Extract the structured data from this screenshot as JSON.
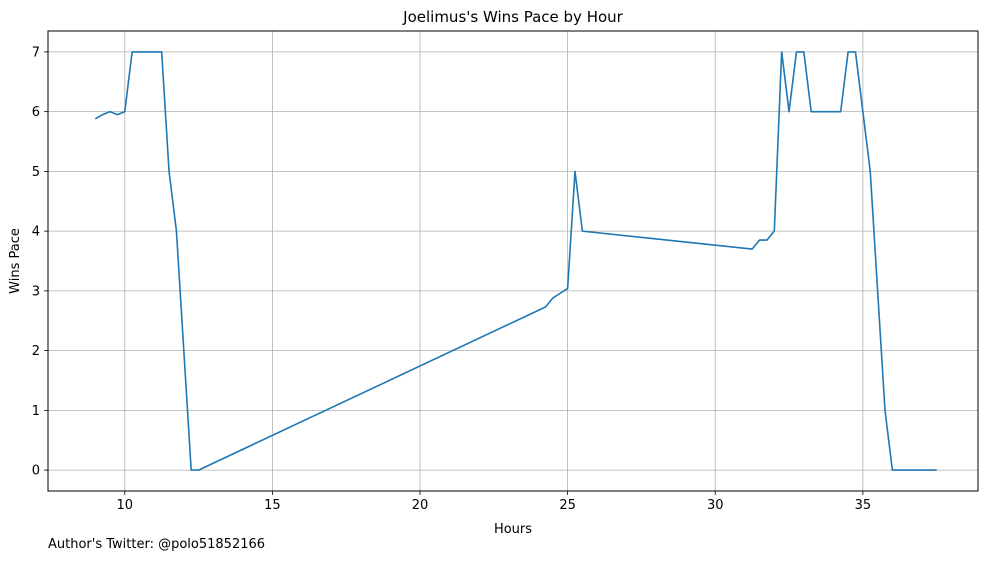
{
  "chart_data": {
    "type": "line",
    "title": "Joelimus's Wins Pace by Hour",
    "xlabel": "Hours",
    "ylabel": "Wins Pace",
    "xlim": [
      7.4,
      38.9
    ],
    "ylim": [
      -0.35,
      7.35
    ],
    "xticks": [
      10,
      15,
      20,
      25,
      30,
      35
    ],
    "yticks": [
      0,
      1,
      2,
      3,
      4,
      5,
      6,
      7
    ],
    "grid": true,
    "line_color": "#1f77b4",
    "series": [
      {
        "x": [
          9.0,
          9.25,
          9.5,
          9.75,
          10.0,
          10.25,
          10.5,
          10.75,
          11.0,
          11.25,
          11.5,
          11.75,
          12.0,
          12.25,
          12.5,
          24.25,
          24.5,
          24.75,
          25.0,
          25.25,
          25.5,
          31.25,
          31.5,
          31.75,
          32.0,
          32.25,
          32.5,
          32.75,
          33.0,
          33.25,
          33.5,
          33.75,
          34.0,
          34.25,
          34.5,
          34.75,
          35.0,
          35.25,
          35.5,
          35.75,
          36.0,
          36.25,
          36.5,
          36.75,
          37.0,
          37.25,
          37.5
        ],
        "y": [
          5.88,
          5.95,
          6.0,
          5.95,
          6.0,
          7.0,
          7.0,
          7.0,
          7.0,
          7.0,
          5.0,
          4.0,
          2.0,
          0.0,
          0.0,
          2.73,
          2.88,
          2.96,
          3.04,
          5.0,
          4.0,
          3.7,
          3.85,
          3.85,
          4.0,
          7.0,
          6.0,
          7.0,
          7.0,
          6.0,
          6.0,
          6.0,
          6.0,
          6.0,
          7.0,
          7.0,
          6.0,
          5.0,
          3.0,
          1.0,
          0.0,
          0.0,
          0.0,
          0.0,
          0.0,
          0.0,
          0.0
        ]
      }
    ]
  },
  "footnote": "Author's Twitter: @polo51852166"
}
